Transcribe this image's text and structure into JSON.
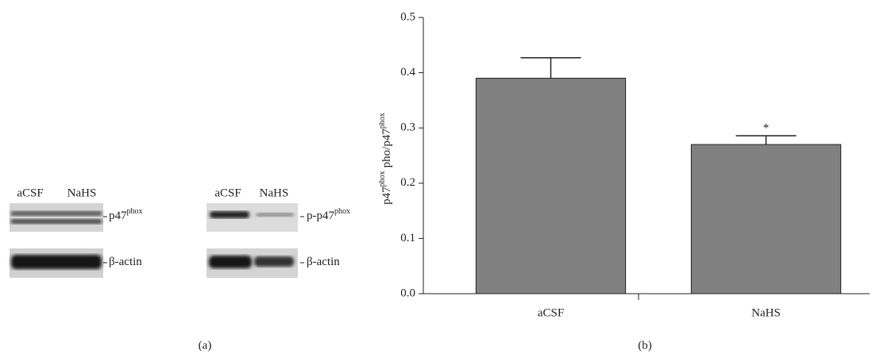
{
  "blots": [
    {
      "lanes": [
        "aCSF",
        "NaHS"
      ],
      "rows": [
        {
          "text": "p47",
          "sup": "phox"
        },
        {
          "text": "β-actin"
        }
      ]
    },
    {
      "lanes": [
        "aCSF",
        "NaHS"
      ],
      "rows": [
        {
          "text": "p-p47",
          "sup": "phox"
        },
        {
          "text": "β-actin"
        }
      ]
    }
  ],
  "panel_labels": [
    "(a)",
    "(b)"
  ],
  "chart_data": {
    "type": "bar",
    "ylabel": [
      "p47",
      "phox",
      "pho/p47",
      "phox"
    ],
    "categories": [
      "aCSF",
      "NaHS"
    ],
    "values": [
      0.39,
      0.27
    ],
    "errors": [
      0.037,
      0.016
    ],
    "color": "#808080",
    "annotations": [
      {
        "category": 1,
        "text": "*"
      }
    ],
    "ylim": [
      0,
      0.5
    ],
    "yticks": [
      {
        "value": 0,
        "label": "0.0"
      },
      0.1,
      0.2,
      0.3,
      0.4,
      0.5
    ]
  }
}
